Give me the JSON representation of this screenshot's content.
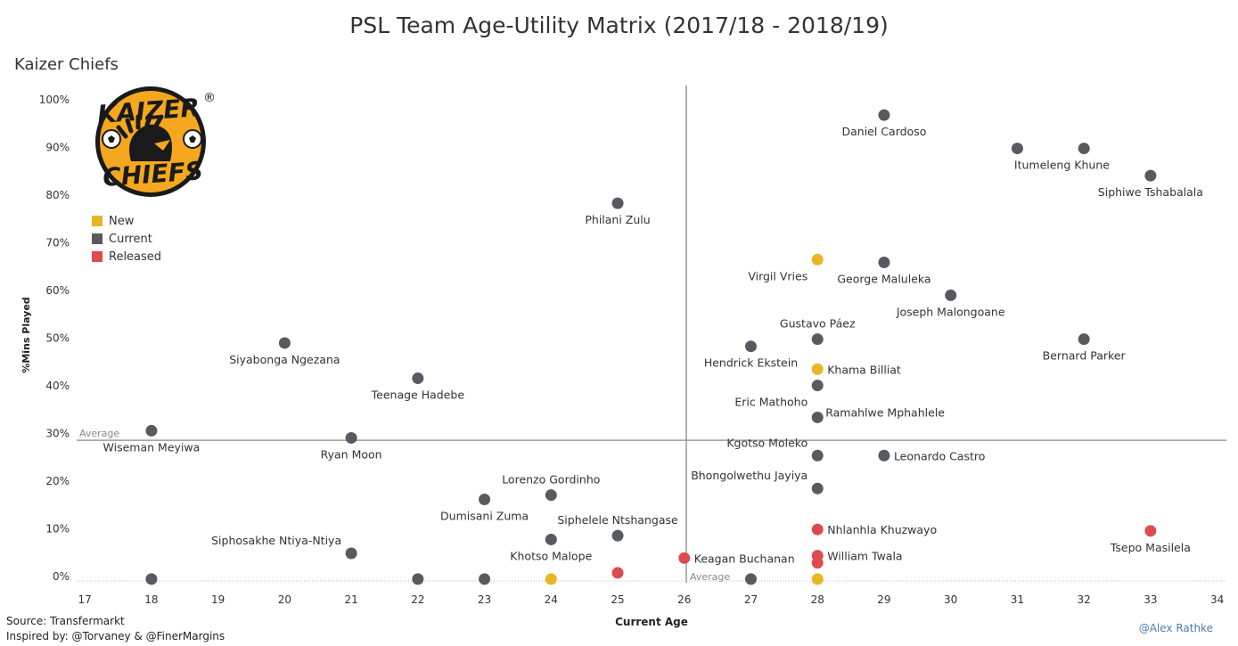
{
  "header": {
    "title": "PSL Team Age-Utility Matrix (2017/18 - 2018/19)",
    "team": "Kaizer Chiefs"
  },
  "logo": {
    "text_top": "KAIZER",
    "text_bottom": "CHIEFS",
    "registered": "®"
  },
  "legend": [
    {
      "label": "New",
      "color": "#e8b523"
    },
    {
      "label": "Current",
      "color": "#595a60"
    },
    {
      "label": "Released",
      "color": "#dd4b50"
    }
  ],
  "footer": {
    "source": "Source: Transfermarkt",
    "inspired": "Inspired by: @Torvaney & @FinerMargins",
    "credit": "@Alex Rathke"
  },
  "chart_data": {
    "type": "scatter",
    "xlabel": "Current Age",
    "ylabel": "%Mins Played",
    "xlim": [
      17,
      34
    ],
    "ylim": [
      0,
      100
    ],
    "xticks": [
      17,
      18,
      19,
      20,
      21,
      22,
      23,
      24,
      25,
      26,
      27,
      28,
      29,
      30,
      31,
      32,
      33,
      34
    ],
    "yticks": [
      0,
      10,
      20,
      30,
      40,
      50,
      60,
      70,
      80,
      90,
      100
    ],
    "avg_x": 26.03,
    "avg_y": 28.6,
    "avg_label": "Average",
    "colors": {
      "New": "#e8b523",
      "Current": "#595a60",
      "Released": "#dd4b50"
    },
    "points": [
      {
        "name": "Daniel Cardoso",
        "age": 29,
        "pct": 96.8,
        "status": "Current",
        "label_pos": "below"
      },
      {
        "name": "Itumeleng Khune",
        "age": 31,
        "pct": 89.8,
        "status": "Current",
        "label_pos": "below-right"
      },
      {
        "name": "",
        "age": 32,
        "pct": 89.8,
        "status": "Current",
        "label_pos": "none"
      },
      {
        "name": "Siphiwe Tshabalala",
        "age": 33,
        "pct": 84.1,
        "status": "Current",
        "label_pos": "below"
      },
      {
        "name": "Philani Zulu",
        "age": 25,
        "pct": 78.3,
        "status": "Current",
        "label_pos": "below"
      },
      {
        "name": "Virgil Vries",
        "age": 28,
        "pct": 66.5,
        "status": "New",
        "label_pos": "below-left"
      },
      {
        "name": "George Maluleka",
        "age": 29,
        "pct": 65.9,
        "status": "Current",
        "label_pos": "below"
      },
      {
        "name": "Joseph Malongoane",
        "age": 30,
        "pct": 59.0,
        "status": "Current",
        "label_pos": "below"
      },
      {
        "name": "Gustavo Páez",
        "age": 28,
        "pct": 49.8,
        "status": "Current",
        "label_pos": "above"
      },
      {
        "name": "Bernard Parker",
        "age": 32,
        "pct": 49.8,
        "status": "Current",
        "label_pos": "below"
      },
      {
        "name": "Siyabonga Ngezana",
        "age": 20,
        "pct": 49.0,
        "status": "Current",
        "label_pos": "below"
      },
      {
        "name": "Hendrick Ekstein",
        "age": 27,
        "pct": 48.3,
        "status": "Current",
        "label_pos": "below"
      },
      {
        "name": "Khama Billiat",
        "age": 28,
        "pct": 43.5,
        "status": "New",
        "label_pos": "right"
      },
      {
        "name": "Teenage Hadebe",
        "age": 22,
        "pct": 41.6,
        "status": "Current",
        "label_pos": "below"
      },
      {
        "name": "Eric Mathoho",
        "age": 28,
        "pct": 40.1,
        "status": "Current",
        "label_pos": "below-left"
      },
      {
        "name": "Ramahlwe Mphahlele",
        "age": 28,
        "pct": 33.4,
        "status": "Current",
        "label_pos": "above-right"
      },
      {
        "name": "Wiseman Meyiwa",
        "age": 18,
        "pct": 30.6,
        "status": "Current",
        "label_pos": "below"
      },
      {
        "name": "Ryan Moon",
        "age": 21,
        "pct": 29.1,
        "status": "Current",
        "label_pos": "below"
      },
      {
        "name": "Kgotso Moleko",
        "age": 28,
        "pct": 25.4,
        "status": "Current",
        "label_pos": "above-left"
      },
      {
        "name": "Leonardo Castro",
        "age": 29,
        "pct": 25.4,
        "status": "Current",
        "label_pos": "right"
      },
      {
        "name": "Bhongolwethu Jayiya",
        "age": 28,
        "pct": 18.5,
        "status": "Current",
        "label_pos": "above-left"
      },
      {
        "name": "Lorenzo Gordinho",
        "age": 24,
        "pct": 17.1,
        "status": "Current",
        "label_pos": "above"
      },
      {
        "name": "Dumisani Zuma",
        "age": 23,
        "pct": 16.2,
        "status": "Current",
        "label_pos": "below"
      },
      {
        "name": "Nhlanhla Khuzwayo",
        "age": 28,
        "pct": 9.9,
        "status": "Released",
        "label_pos": "right"
      },
      {
        "name": "Tsepo Masilela",
        "age": 33,
        "pct": 9.6,
        "status": "Released",
        "label_pos": "below"
      },
      {
        "name": "Siphelele Ntshangase",
        "age": 25,
        "pct": 8.6,
        "status": "Current",
        "label_pos": "above"
      },
      {
        "name": "Khotso Malope",
        "age": 24,
        "pct": 7.8,
        "status": "Current",
        "label_pos": "below"
      },
      {
        "name": "Siphosakhe Ntiya-Ntiya",
        "age": 21,
        "pct": 4.9,
        "status": "Current",
        "label_pos": "above-left"
      },
      {
        "name": "William Twala",
        "age": 28,
        "pct": 4.4,
        "status": "Released",
        "label_pos": "right"
      },
      {
        "name": "Keagan Buchanan",
        "age": 26,
        "pct": 3.9,
        "status": "Released",
        "label_pos": "right"
      },
      {
        "name": "",
        "age": 28,
        "pct": 2.9,
        "status": "Released",
        "label_pos": "none"
      },
      {
        "name": "",
        "age": 25,
        "pct": 0.8,
        "status": "Released",
        "label_pos": "none"
      },
      {
        "name": "",
        "age": 18,
        "pct": -0.5,
        "status": "Current",
        "label_pos": "none"
      },
      {
        "name": "",
        "age": 22,
        "pct": -0.5,
        "status": "Current",
        "label_pos": "none"
      },
      {
        "name": "",
        "age": 23,
        "pct": -0.5,
        "status": "Current",
        "label_pos": "none"
      },
      {
        "name": "",
        "age": 24,
        "pct": -0.5,
        "status": "New",
        "label_pos": "none"
      },
      {
        "name": "",
        "age": 27,
        "pct": -0.5,
        "status": "Current",
        "label_pos": "none"
      },
      {
        "name": "",
        "age": 28,
        "pct": -0.5,
        "status": "New",
        "label_pos": "none"
      }
    ]
  }
}
